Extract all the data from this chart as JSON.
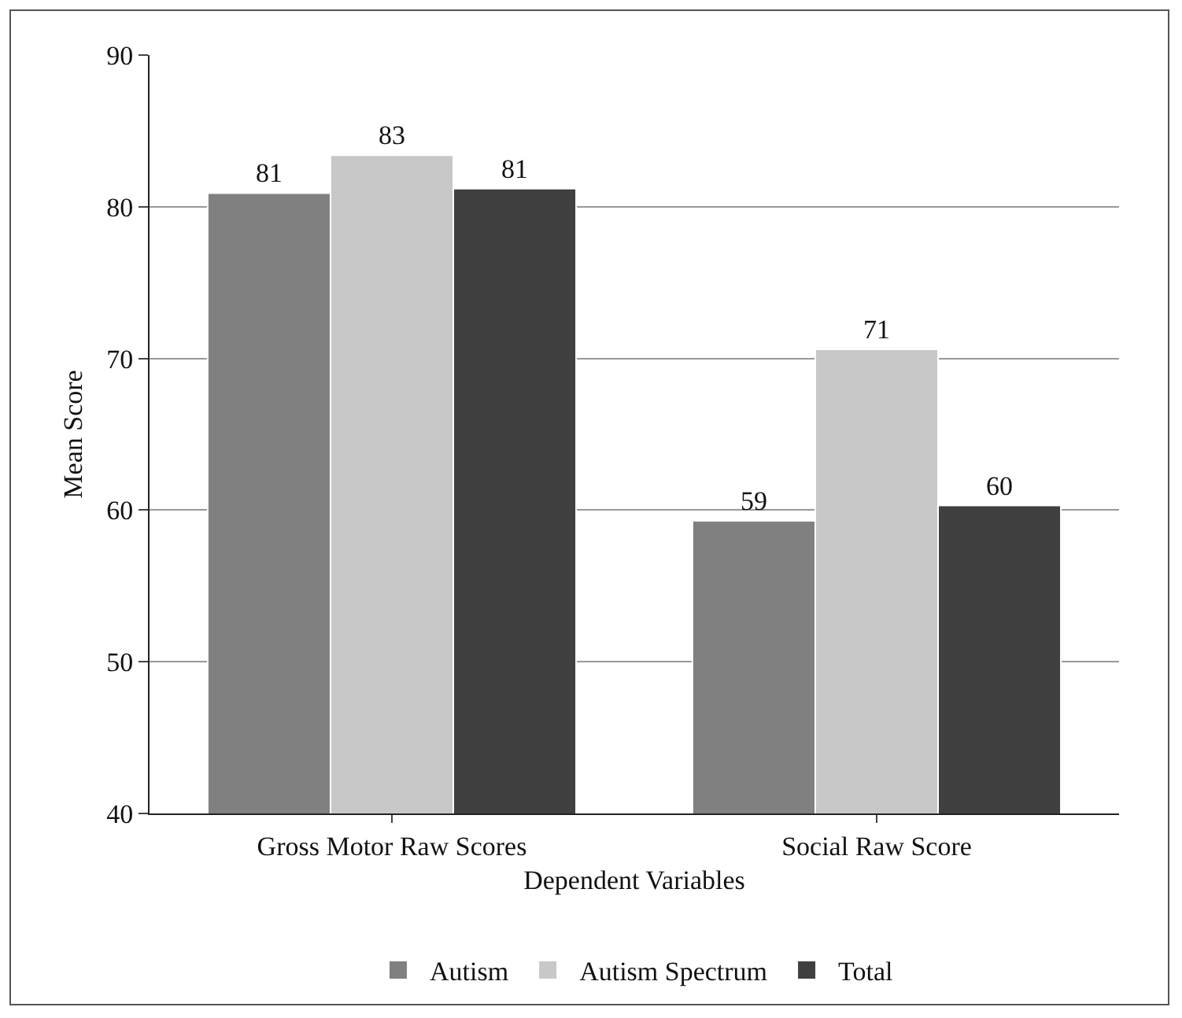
{
  "chart_data": {
    "type": "bar",
    "xlabel": "Dependent Variables",
    "ylabel": "Mean Score",
    "categories": [
      "Gross Motor Raw Scores",
      "Social Raw Score"
    ],
    "series": [
      {
        "name": "Autism",
        "color": "#808080",
        "values": [
          80.9,
          59.3
        ],
        "value_labels": [
          "81",
          "59"
        ]
      },
      {
        "name": "Autism Spectrum",
        "color": "#c8c8c8",
        "values": [
          83.4,
          70.6
        ],
        "value_labels": [
          "83",
          "71"
        ]
      },
      {
        "name": "Total",
        "color": "#404040",
        "values": [
          81.2,
          60.3
        ],
        "value_labels": [
          "81",
          "60"
        ]
      }
    ],
    "ylim": [
      40,
      90
    ],
    "yticks": [
      40,
      50,
      60,
      70,
      80,
      90
    ],
    "grid": "y",
    "legend": "bottom"
  }
}
